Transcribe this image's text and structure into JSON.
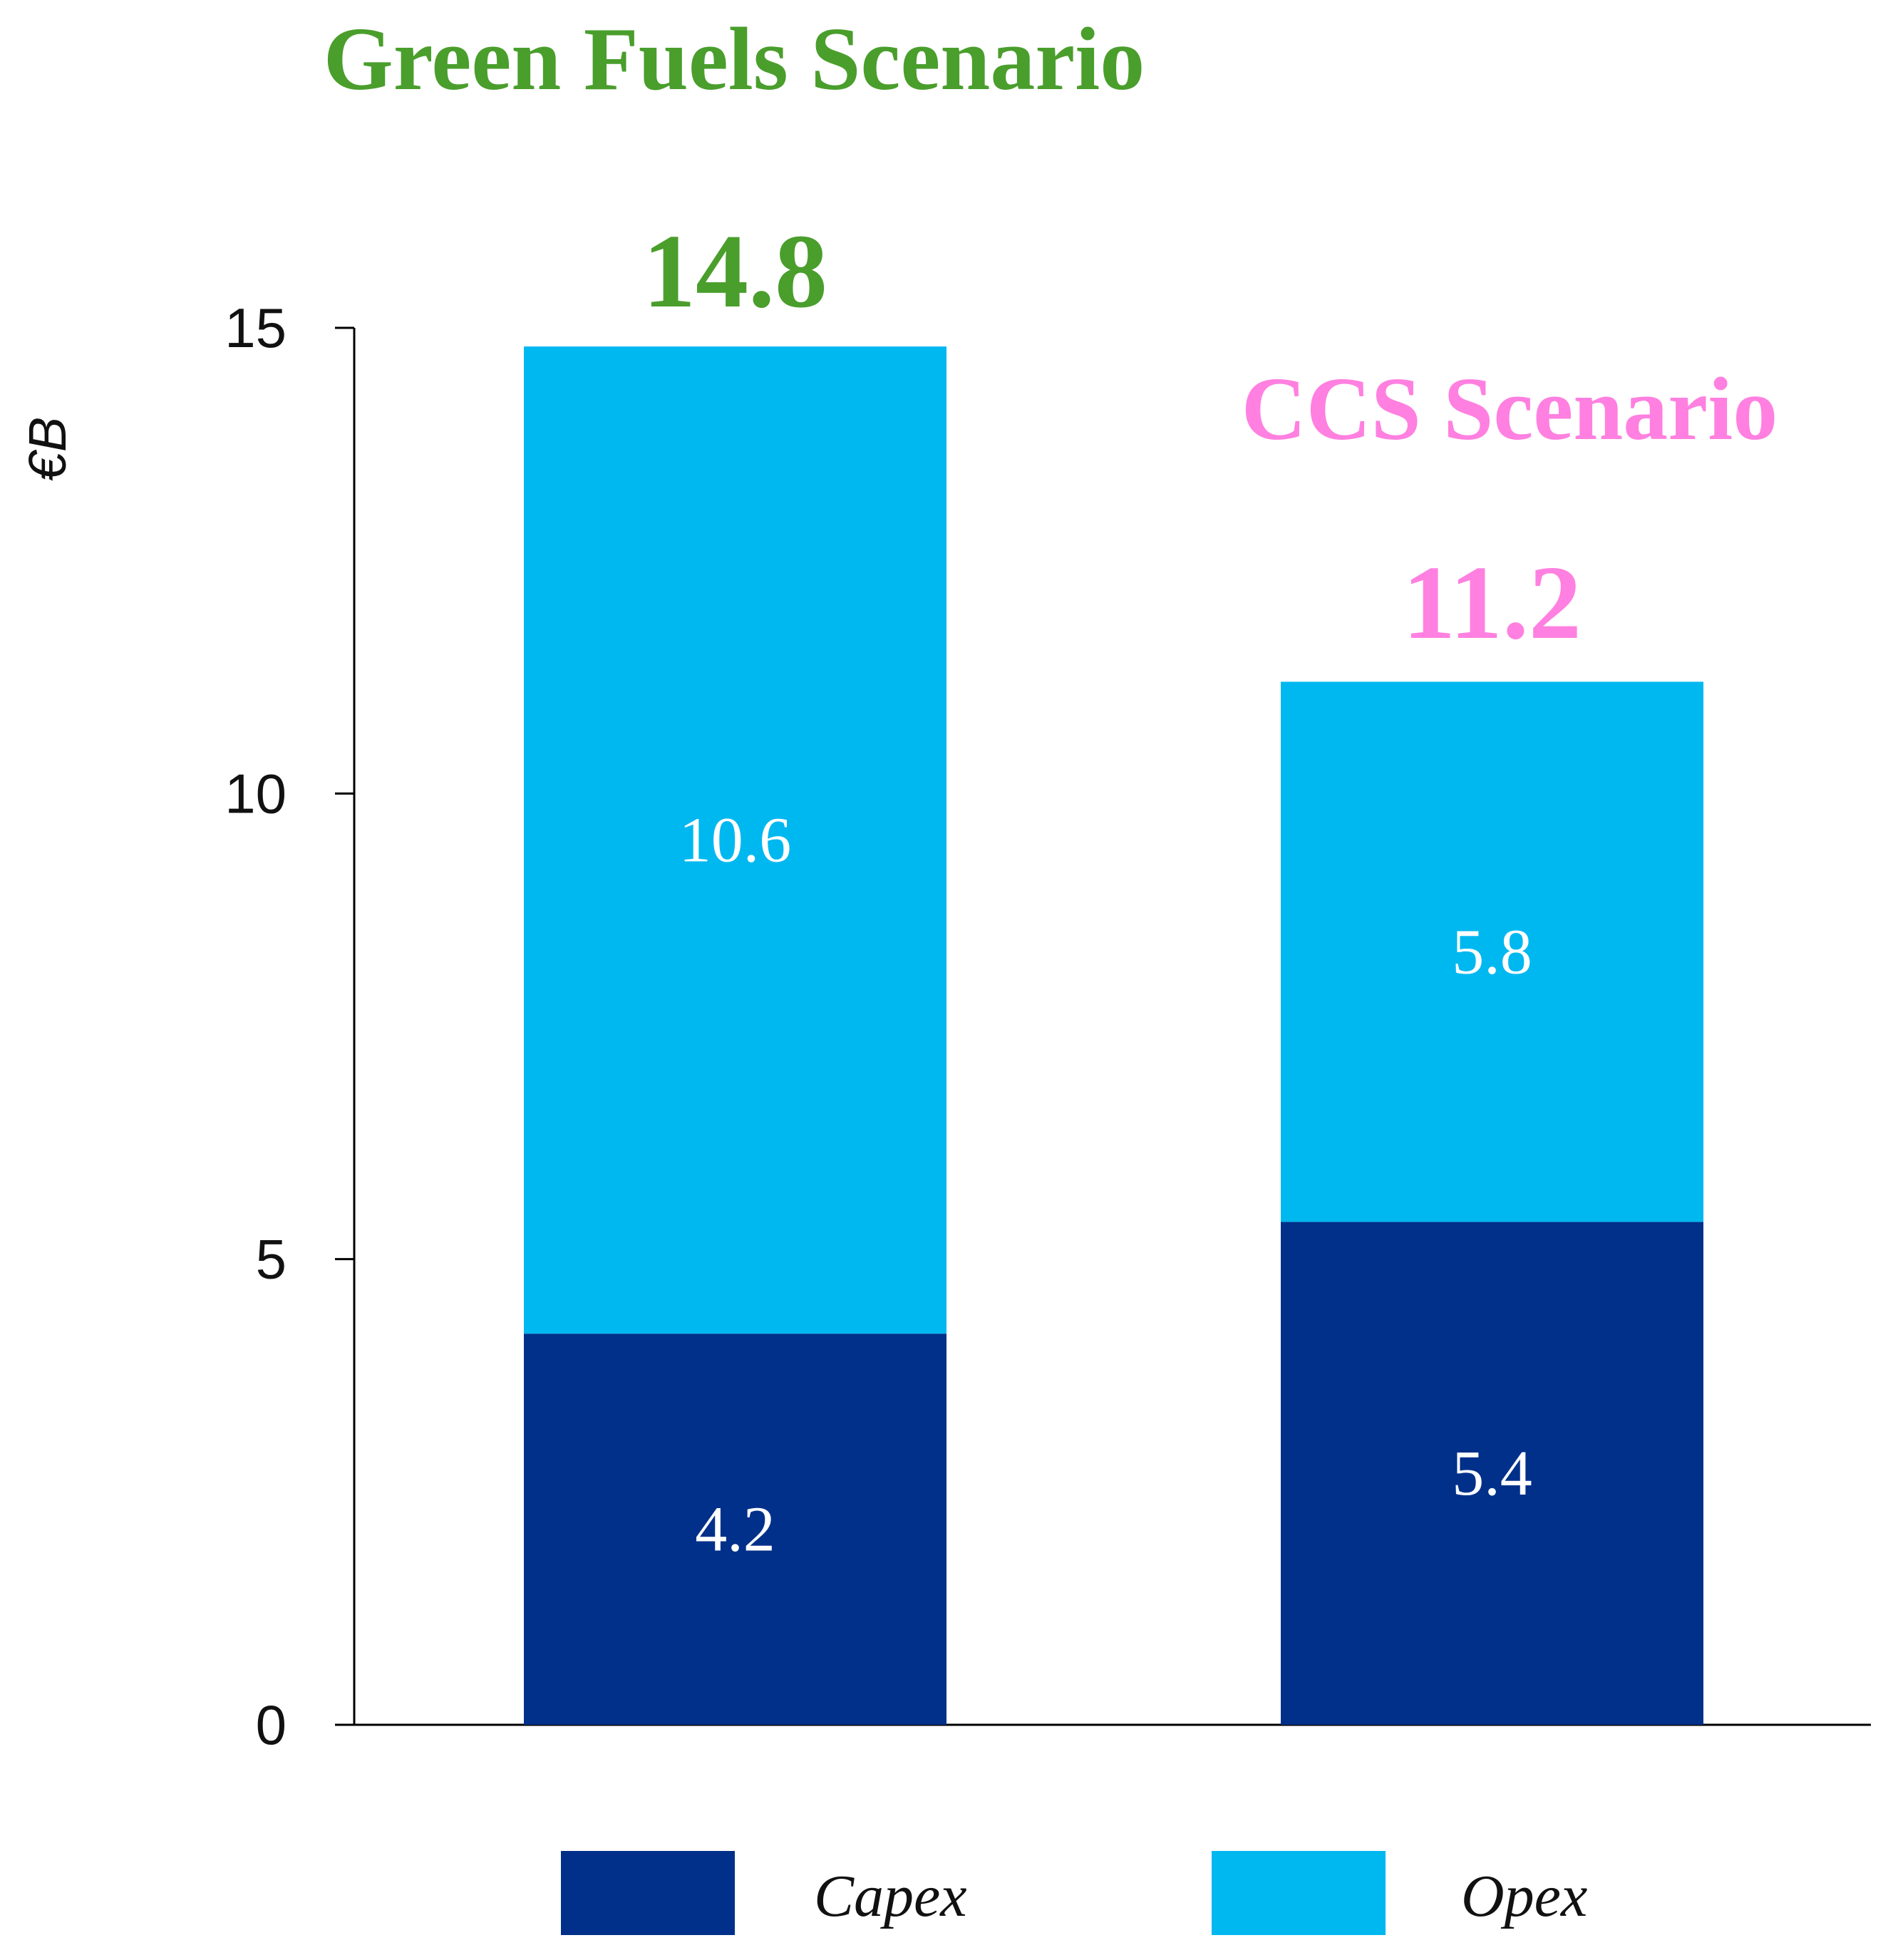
{
  "chart_data": {
    "type": "bar",
    "stacked": true,
    "categories": [
      "Green Fuels Scenario",
      "CCS Scenario"
    ],
    "series": [
      {
        "name": "Capex",
        "values": [
          4.2,
          5.4
        ],
        "color": "#00308a"
      },
      {
        "name": "Opex",
        "values": [
          10.6,
          5.8
        ],
        "color": "#00b8f0"
      }
    ],
    "totals": [
      "14.8",
      "11.2"
    ],
    "segment_labels": [
      [
        "4.2",
        "10.6"
      ],
      [
        "5.4",
        "5.8"
      ]
    ],
    "category_colors": [
      "#4a9e2c",
      "#ff80e0"
    ],
    "title": "",
    "xlabel": "",
    "ylabel": "€B",
    "ylim": [
      0,
      15
    ],
    "yticks": [
      "0",
      "5",
      "10",
      "15"
    ],
    "grid": false,
    "legend_position": "bottom"
  }
}
